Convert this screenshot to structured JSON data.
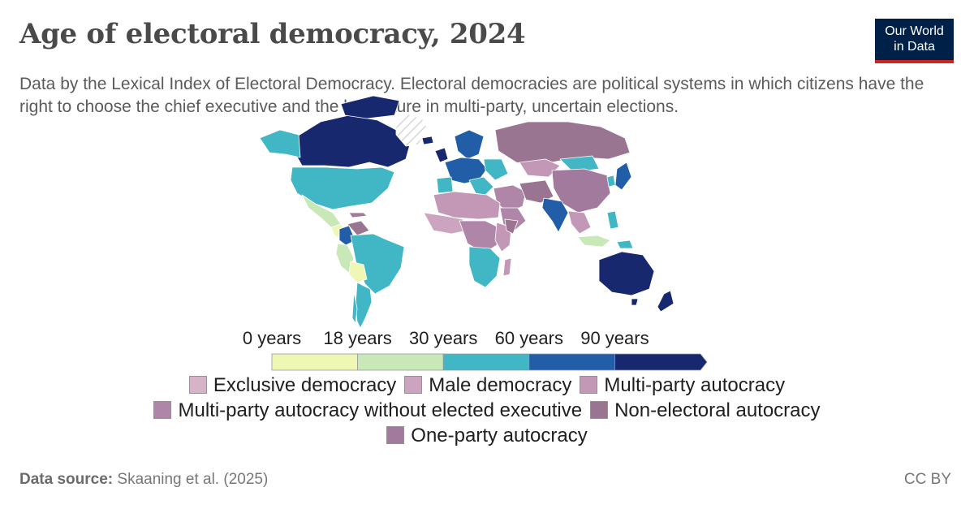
{
  "title": "Age of electoral democracy, 2024",
  "subtitle": "Data by the Lexical Index of Electoral Democracy. Electoral democracies are political systems in which citizens have the right to choose the chief executive and the legislature in multi-party, uncertain elections.",
  "logo": {
    "line1": "Our World",
    "line2": "in Data"
  },
  "colors": {
    "ocean": "#ffffff",
    "border": "#ffffff",
    "no_data_hatch": "#cfcfcf",
    "logo_bg": "#002147",
    "logo_accent": "#ce261e"
  },
  "scale": {
    "labels": [
      "0 years",
      "18 years",
      "30 years",
      "60 years",
      "90 years"
    ],
    "bins": [
      {
        "from": 0,
        "to": 18,
        "color": "#eef7b3"
      },
      {
        "from": 18,
        "to": 30,
        "color": "#c8e8b8"
      },
      {
        "from": 30,
        "to": 60,
        "color": "#41b6c4"
      },
      {
        "from": 60,
        "to": 90,
        "color": "#225ea8"
      },
      {
        "from": 90,
        "to": null,
        "color": "#17286e"
      }
    ]
  },
  "categories": [
    {
      "label": "Exclusive democracy",
      "color": "#d6b3c6"
    },
    {
      "label": "Male democracy",
      "color": "#cca4bf"
    },
    {
      "label": "Multi-party autocracy",
      "color": "#c298b6"
    },
    {
      "label": "Multi-party autocracy without elected executive",
      "color": "#b086a8"
    },
    {
      "label": "Non-electoral autocracy",
      "color": "#9a7591"
    },
    {
      "label": "One-party autocracy",
      "color": "#a27a9e"
    }
  ],
  "legend_rows": [
    [
      0,
      1,
      2
    ],
    [
      3,
      4
    ],
    [
      5
    ]
  ],
  "footer": {
    "source_label": "Data source:",
    "source": "Skaaning et al. (2025)",
    "license": "CC BY"
  }
}
